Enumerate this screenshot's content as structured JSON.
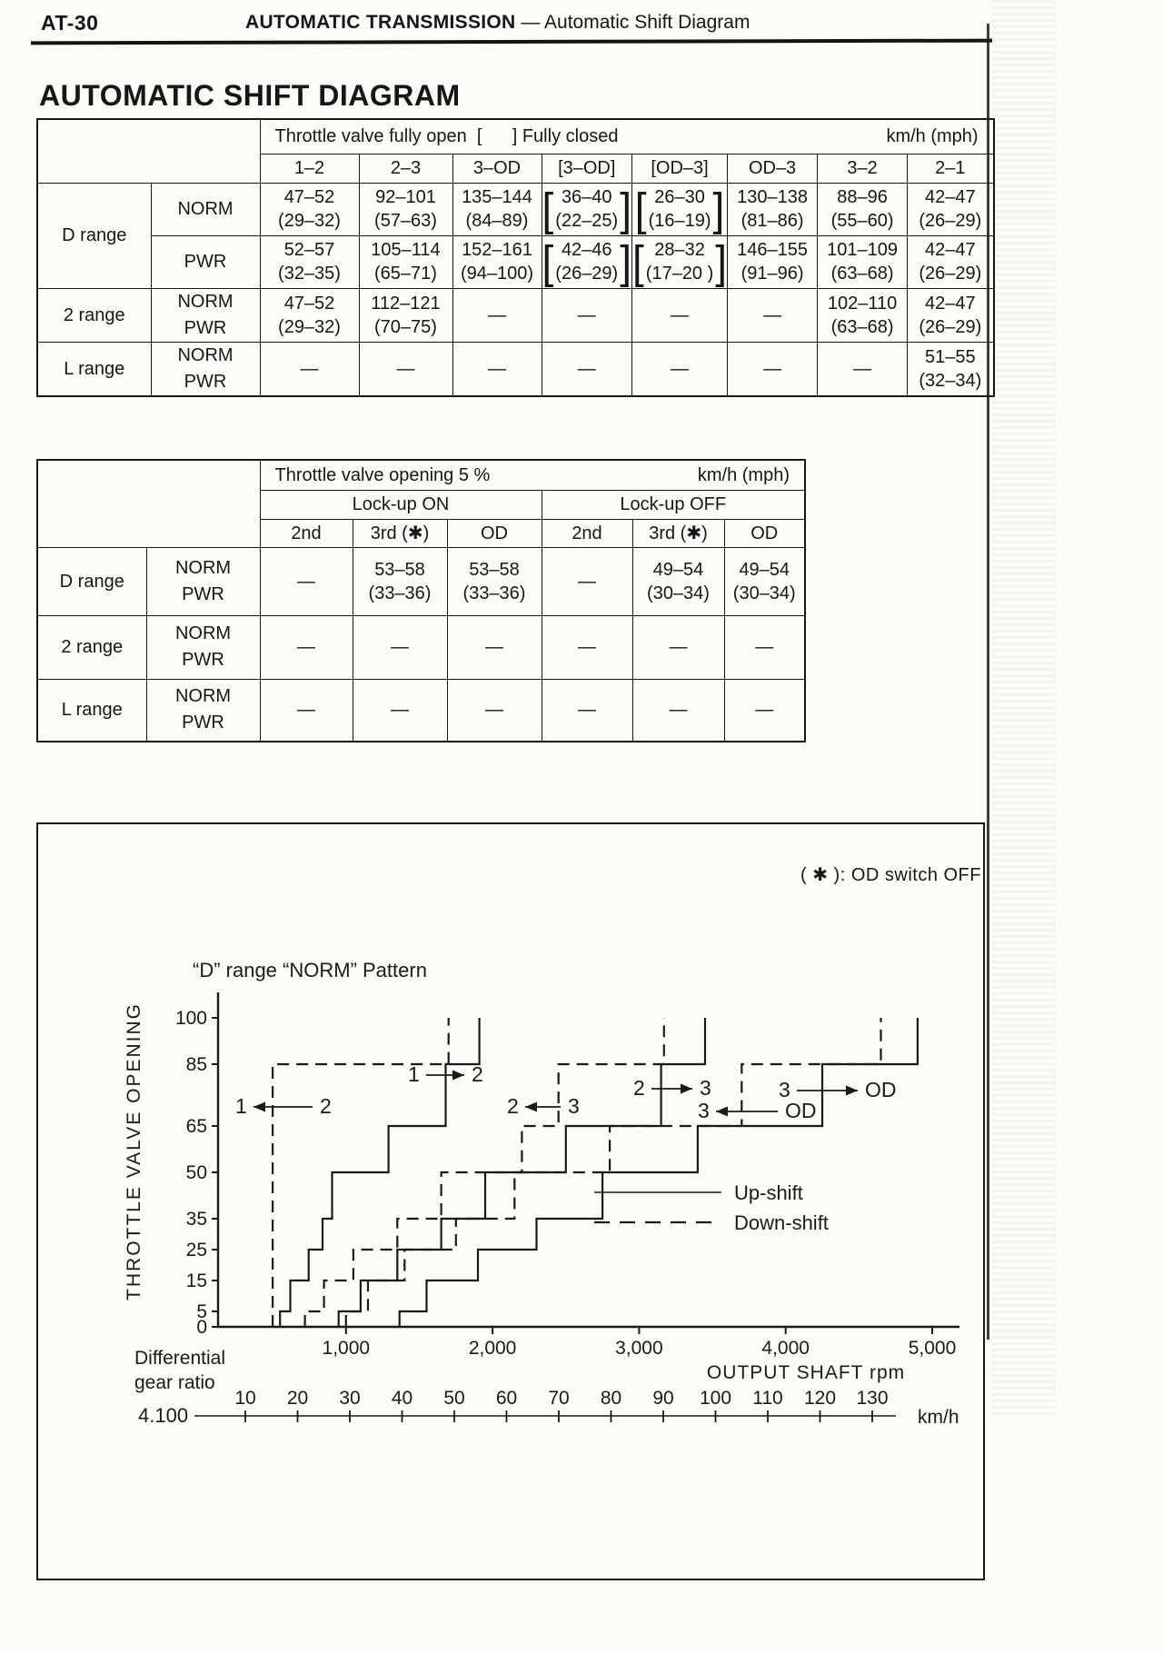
{
  "page": {
    "code": "AT-30",
    "section": "AUTOMATIC TRANSMISSION",
    "section_divider": "—",
    "subsection": "Automatic Shift Diagram",
    "title": "AUTOMATIC SHIFT DIAGRAM",
    "footnote": "( ✱ ):   OD switch OFF"
  },
  "table1": {
    "header_left": "Throttle valve fully open  [      ] Fully closed",
    "header_right": "km/h (mph)",
    "columns": [
      "1–2",
      "2–3",
      "3–OD",
      "[3–OD]",
      "[OD–3]",
      "OD–3",
      "3–2",
      "2–1"
    ],
    "rows": [
      {
        "range": "D range",
        "range_span": 2,
        "modes": [
          "NORM"
        ],
        "cells": [
          {
            "lines": [
              "47–52",
              "(29–32)"
            ]
          },
          {
            "lines": [
              "92–101",
              "(57–63)"
            ]
          },
          {
            "lines": [
              "135–144",
              "(84–89)"
            ]
          },
          {
            "lines": [
              "36–40",
              "(22–25)"
            ],
            "bracketed": true
          },
          {
            "lines": [
              "26–30",
              "(16–19)"
            ],
            "bracketed": true
          },
          {
            "lines": [
              "130–138",
              "(81–86)"
            ]
          },
          {
            "lines": [
              "88–96",
              "(55–60)"
            ]
          },
          {
            "lines": [
              "42–47",
              "(26–29)"
            ]
          }
        ]
      },
      {
        "modes": [
          "PWR"
        ],
        "cells": [
          {
            "lines": [
              "52–57",
              "(32–35)"
            ]
          },
          {
            "lines": [
              "105–114",
              "(65–71)"
            ]
          },
          {
            "lines": [
              "152–161",
              "(94–100)"
            ]
          },
          {
            "lines": [
              "42–46",
              "(26–29)"
            ],
            "bracketed": true
          },
          {
            "lines": [
              "28–32",
              "(17–20 )"
            ],
            "bracketed": true
          },
          {
            "lines": [
              "146–155",
              "(91–96)"
            ]
          },
          {
            "lines": [
              "101–109",
              "(63–68)"
            ]
          },
          {
            "lines": [
              "42–47",
              "(26–29)"
            ]
          }
        ]
      },
      {
        "range": "2 range",
        "range_span": 1,
        "modes": [
          "NORM",
          "PWR"
        ],
        "cells": [
          {
            "lines": [
              "47–52",
              "(29–32)"
            ]
          },
          {
            "lines": [
              "112–121",
              "(70–75)"
            ]
          },
          {
            "lines": [
              "—"
            ]
          },
          {
            "lines": [
              "—"
            ]
          },
          {
            "lines": [
              "—"
            ]
          },
          {
            "lines": [
              "—"
            ]
          },
          {
            "lines": [
              "102–110",
              "(63–68)"
            ]
          },
          {
            "lines": [
              "42–47",
              "(26–29)"
            ]
          }
        ]
      },
      {
        "range": "L range",
        "range_span": 1,
        "modes": [
          "NORM",
          "PWR"
        ],
        "cells": [
          {
            "lines": [
              "—"
            ]
          },
          {
            "lines": [
              "—"
            ]
          },
          {
            "lines": [
              "—"
            ]
          },
          {
            "lines": [
              "—"
            ]
          },
          {
            "lines": [
              "—"
            ]
          },
          {
            "lines": [
              "—"
            ]
          },
          {
            "lines": [
              "—"
            ]
          },
          {
            "lines": [
              "51–55",
              "(32–34)"
            ]
          }
        ]
      }
    ]
  },
  "table2": {
    "header_left": "Throttle valve opening 5 %",
    "header_right": "km/h (mph)",
    "groups": [
      "Lock-up ON",
      "Lock-up OFF"
    ],
    "columns": [
      "2nd",
      "3rd (✱)",
      "OD",
      "2nd",
      "3rd (✱)",
      "OD"
    ],
    "rows": [
      {
        "range": "D range",
        "modes": [
          "NORM",
          "PWR"
        ],
        "cells": [
          {
            "lines": [
              "—"
            ]
          },
          {
            "lines": [
              "53–58",
              "(33–36)"
            ]
          },
          {
            "lines": [
              "53–58",
              "(33–36)"
            ]
          },
          {
            "lines": [
              "—"
            ]
          },
          {
            "lines": [
              "49–54",
              "(30–34)"
            ]
          },
          {
            "lines": [
              "49–54",
              "(30–34)"
            ]
          }
        ]
      },
      {
        "range": "2 range",
        "modes": [
          "NORM",
          "PWR"
        ],
        "cells": [
          {
            "lines": [
              "—"
            ]
          },
          {
            "lines": [
              "—"
            ]
          },
          {
            "lines": [
              "—"
            ]
          },
          {
            "lines": [
              "—"
            ]
          },
          {
            "lines": [
              "—"
            ]
          },
          {
            "lines": [
              "—"
            ]
          }
        ]
      },
      {
        "range": "L range",
        "modes": [
          "NORM",
          "PWR"
        ],
        "cells": [
          {
            "lines": [
              "—"
            ]
          },
          {
            "lines": [
              "—"
            ]
          },
          {
            "lines": [
              "—"
            ]
          },
          {
            "lines": [
              "—"
            ]
          },
          {
            "lines": [
              "—"
            ]
          },
          {
            "lines": [
              "—"
            ]
          }
        ]
      }
    ]
  },
  "chart_data": {
    "type": "line",
    "title": "“D” range “NORM” Pattern",
    "ylabel": "THROTTLE VALVE OPENING",
    "xlabel": "OUTPUT SHAFT rpm",
    "xlim": [
      0,
      5400
    ],
    "ylim": [
      0,
      100
    ],
    "grid": false,
    "y_ticks": [
      0,
      5,
      15,
      25,
      35,
      50,
      65,
      85,
      100
    ],
    "x_ticks": [
      1000,
      2000,
      3000,
      4000,
      5000
    ],
    "x_tick_labels": [
      "1,000",
      "2,000",
      "3,000",
      "4,000",
      "5,000"
    ],
    "throttle_breakpoints": [
      0,
      5,
      15,
      25,
      35,
      50,
      65,
      85,
      100
    ],
    "series": [
      {
        "name": "1→2",
        "direction": "up-shift",
        "style": "solid",
        "rpm_at_segment": [
          550,
          620,
          745,
          840,
          905,
          1290,
          1680,
          1910
        ]
      },
      {
        "name": "2→1",
        "direction": "down-shift",
        "style": "dashed",
        "rpm_at_segment": [
          500,
          500,
          500,
          500,
          500,
          500,
          500,
          1700
        ]
      },
      {
        "name": "2→3",
        "direction": "up-shift",
        "style": "solid",
        "rpm_at_segment": [
          950,
          1100,
          1350,
          1650,
          1950,
          2500,
          3150,
          3450
        ]
      },
      {
        "name": "3→2",
        "direction": "down-shift",
        "style": "dashed",
        "rpm_at_segment": [
          720,
          850,
          1050,
          1350,
          1650,
          2200,
          2450,
          3170
        ]
      },
      {
        "name": "3→OD",
        "direction": "up-shift",
        "style": "solid",
        "rpm_at_segment": [
          1365,
          1550,
          1900,
          2300,
          2750,
          3400,
          4250,
          4900
        ]
      },
      {
        "name": "OD→3",
        "direction": "down-shift",
        "style": "dashed",
        "rpm_at_segment": [
          1000,
          1150,
          1400,
          1750,
          2150,
          2800,
          3700,
          4650
        ]
      }
    ],
    "legend": [
      {
        "label": "Up-shift",
        "style": "solid"
      },
      {
        "label": "Down-shift",
        "style": "dashed"
      }
    ],
    "legend_position": "middle-right",
    "secondary_axis": {
      "caption1": "Differential",
      "caption2": "gear ratio",
      "ratio": "4.100",
      "unit": "km/h",
      "ticks": [
        10,
        20,
        30,
        40,
        50,
        60,
        70,
        80,
        90,
        100,
        110,
        120,
        130
      ]
    },
    "annotations": [
      {
        "a": "1",
        "b": "2",
        "shift": "down",
        "ax": 217,
        "bx": 310,
        "y": 318
      },
      {
        "a": "1",
        "b": "2",
        "shift": "up",
        "ax": 407,
        "bx": 477,
        "y": 283
      },
      {
        "a": "2",
        "b": "3",
        "shift": "down",
        "ax": 516,
        "bx": 583,
        "y": 318
      },
      {
        "a": "2",
        "b": "3",
        "shift": "up",
        "ax": 655,
        "bx": 728,
        "y": 298
      },
      {
        "a": "3",
        "b": "OD",
        "shift": "down",
        "ax": 726,
        "bx": 822,
        "y": 323
      },
      {
        "a": "3",
        "b": "OD",
        "shift": "up",
        "ax": 815,
        "bx": 910,
        "y": 300
      }
    ]
  }
}
